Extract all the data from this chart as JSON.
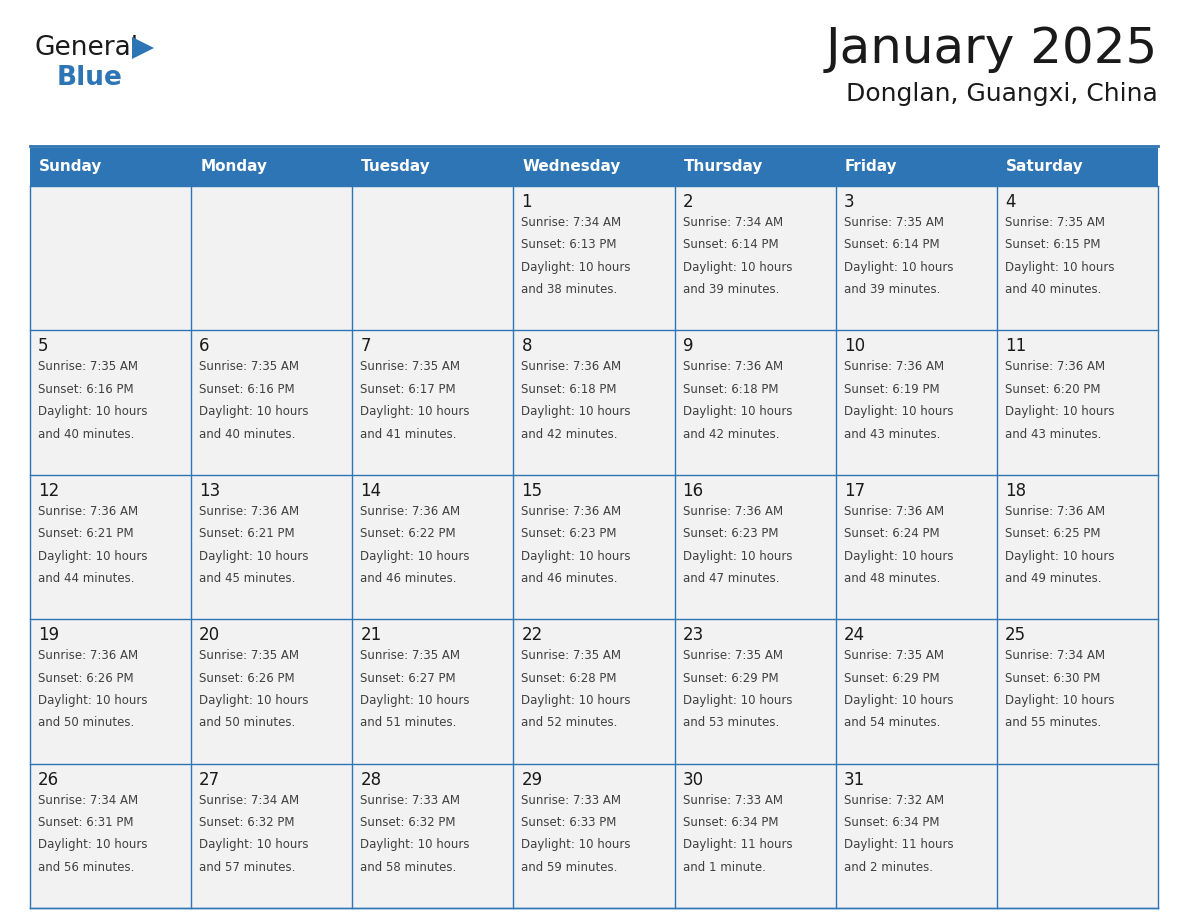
{
  "title": "January 2025",
  "subtitle": "Donglan, Guangxi, China",
  "header_color": "#2E75B6",
  "header_text_color": "#FFFFFF",
  "cell_bg_even": "#F2F2F2",
  "cell_bg_odd": "#FFFFFF",
  "border_color": "#2E75B6",
  "text_color": "#333333",
  "days_of_week": [
    "Sunday",
    "Monday",
    "Tuesday",
    "Wednesday",
    "Thursday",
    "Friday",
    "Saturday"
  ],
  "calendar": [
    [
      null,
      null,
      null,
      {
        "day": "1",
        "sunrise": "7:34 AM",
        "sunset": "6:13 PM",
        "daylight_h": "10 hours",
        "daylight_m": "and 38 minutes."
      },
      {
        "day": "2",
        "sunrise": "7:34 AM",
        "sunset": "6:14 PM",
        "daylight_h": "10 hours",
        "daylight_m": "and 39 minutes."
      },
      {
        "day": "3",
        "sunrise": "7:35 AM",
        "sunset": "6:14 PM",
        "daylight_h": "10 hours",
        "daylight_m": "and 39 minutes."
      },
      {
        "day": "4",
        "sunrise": "7:35 AM",
        "sunset": "6:15 PM",
        "daylight_h": "10 hours",
        "daylight_m": "and 40 minutes."
      }
    ],
    [
      {
        "day": "5",
        "sunrise": "7:35 AM",
        "sunset": "6:16 PM",
        "daylight_h": "10 hours",
        "daylight_m": "and 40 minutes."
      },
      {
        "day": "6",
        "sunrise": "7:35 AM",
        "sunset": "6:16 PM",
        "daylight_h": "10 hours",
        "daylight_m": "and 40 minutes."
      },
      {
        "day": "7",
        "sunrise": "7:35 AM",
        "sunset": "6:17 PM",
        "daylight_h": "10 hours",
        "daylight_m": "and 41 minutes."
      },
      {
        "day": "8",
        "sunrise": "7:36 AM",
        "sunset": "6:18 PM",
        "daylight_h": "10 hours",
        "daylight_m": "and 42 minutes."
      },
      {
        "day": "9",
        "sunrise": "7:36 AM",
        "sunset": "6:18 PM",
        "daylight_h": "10 hours",
        "daylight_m": "and 42 minutes."
      },
      {
        "day": "10",
        "sunrise": "7:36 AM",
        "sunset": "6:19 PM",
        "daylight_h": "10 hours",
        "daylight_m": "and 43 minutes."
      },
      {
        "day": "11",
        "sunrise": "7:36 AM",
        "sunset": "6:20 PM",
        "daylight_h": "10 hours",
        "daylight_m": "and 43 minutes."
      }
    ],
    [
      {
        "day": "12",
        "sunrise": "7:36 AM",
        "sunset": "6:21 PM",
        "daylight_h": "10 hours",
        "daylight_m": "and 44 minutes."
      },
      {
        "day": "13",
        "sunrise": "7:36 AM",
        "sunset": "6:21 PM",
        "daylight_h": "10 hours",
        "daylight_m": "and 45 minutes."
      },
      {
        "day": "14",
        "sunrise": "7:36 AM",
        "sunset": "6:22 PM",
        "daylight_h": "10 hours",
        "daylight_m": "and 46 minutes."
      },
      {
        "day": "15",
        "sunrise": "7:36 AM",
        "sunset": "6:23 PM",
        "daylight_h": "10 hours",
        "daylight_m": "and 46 minutes."
      },
      {
        "day": "16",
        "sunrise": "7:36 AM",
        "sunset": "6:23 PM",
        "daylight_h": "10 hours",
        "daylight_m": "and 47 minutes."
      },
      {
        "day": "17",
        "sunrise": "7:36 AM",
        "sunset": "6:24 PM",
        "daylight_h": "10 hours",
        "daylight_m": "and 48 minutes."
      },
      {
        "day": "18",
        "sunrise": "7:36 AM",
        "sunset": "6:25 PM",
        "daylight_h": "10 hours",
        "daylight_m": "and 49 minutes."
      }
    ],
    [
      {
        "day": "19",
        "sunrise": "7:36 AM",
        "sunset": "6:26 PM",
        "daylight_h": "10 hours",
        "daylight_m": "and 50 minutes."
      },
      {
        "day": "20",
        "sunrise": "7:35 AM",
        "sunset": "6:26 PM",
        "daylight_h": "10 hours",
        "daylight_m": "and 50 minutes."
      },
      {
        "day": "21",
        "sunrise": "7:35 AM",
        "sunset": "6:27 PM",
        "daylight_h": "10 hours",
        "daylight_m": "and 51 minutes."
      },
      {
        "day": "22",
        "sunrise": "7:35 AM",
        "sunset": "6:28 PM",
        "daylight_h": "10 hours",
        "daylight_m": "and 52 minutes."
      },
      {
        "day": "23",
        "sunrise": "7:35 AM",
        "sunset": "6:29 PM",
        "daylight_h": "10 hours",
        "daylight_m": "and 53 minutes."
      },
      {
        "day": "24",
        "sunrise": "7:35 AM",
        "sunset": "6:29 PM",
        "daylight_h": "10 hours",
        "daylight_m": "and 54 minutes."
      },
      {
        "day": "25",
        "sunrise": "7:34 AM",
        "sunset": "6:30 PM",
        "daylight_h": "10 hours",
        "daylight_m": "and 55 minutes."
      }
    ],
    [
      {
        "day": "26",
        "sunrise": "7:34 AM",
        "sunset": "6:31 PM",
        "daylight_h": "10 hours",
        "daylight_m": "and 56 minutes."
      },
      {
        "day": "27",
        "sunrise": "7:34 AM",
        "sunset": "6:32 PM",
        "daylight_h": "10 hours",
        "daylight_m": "and 57 minutes."
      },
      {
        "day": "28",
        "sunrise": "7:33 AM",
        "sunset": "6:32 PM",
        "daylight_h": "10 hours",
        "daylight_m": "and 58 minutes."
      },
      {
        "day": "29",
        "sunrise": "7:33 AM",
        "sunset": "6:33 PM",
        "daylight_h": "10 hours",
        "daylight_m": "and 59 minutes."
      },
      {
        "day": "30",
        "sunrise": "7:33 AM",
        "sunset": "6:34 PM",
        "daylight_h": "11 hours",
        "daylight_m": "and 1 minute."
      },
      {
        "day": "31",
        "sunrise": "7:32 AM",
        "sunset": "6:34 PM",
        "daylight_h": "11 hours",
        "daylight_m": "and 2 minutes."
      },
      null
    ]
  ],
  "logo_general_color": "#1a1a1a",
  "logo_blue_color": "#2E75B6",
  "logo_triangle_color": "#2E75B6",
  "title_fontsize": 36,
  "subtitle_fontsize": 18,
  "dow_fontsize": 11,
  "day_num_fontsize": 12,
  "cell_text_fontsize": 8.5
}
